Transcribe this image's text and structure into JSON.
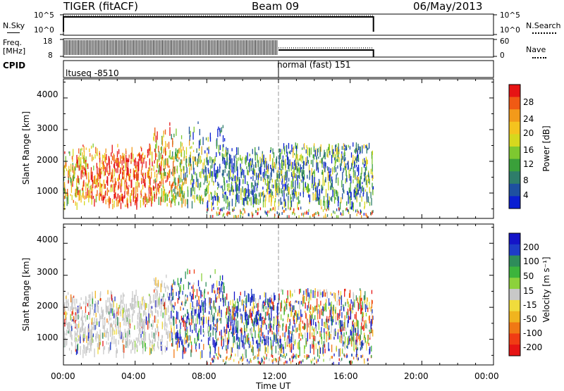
{
  "header": {
    "station": "TIGER (fitACF)",
    "beam": "Beam 09",
    "date": "06/May/2013"
  },
  "status_panels": {
    "nsky": {
      "label": "N.Sky",
      "ticks": [
        "10^5",
        "10^0"
      ],
      "right_ticks": [
        "10^5",
        "10^0"
      ],
      "right_label": "N.Search"
    },
    "freq": {
      "label_line1": "Freq.",
      "label_line2": "[MHz]",
      "ticks": [
        "18",
        "8"
      ],
      "right_ticks": [
        "60",
        "0"
      ],
      "right_label": "Nave"
    },
    "cpid": {
      "label": "CPID",
      "programs": [
        "ltuseq -8510",
        "normal (fast) 151"
      ]
    }
  },
  "chart_data": [
    {
      "type": "heatmap",
      "name": "power",
      "ylabel": "Slant Range [km]",
      "xlabel": "",
      "yticks": [
        1000,
        2000,
        3000,
        4000
      ],
      "ylim": [
        200,
        4600
      ],
      "x_ticks": [
        "00:00",
        "04:00",
        "08:00",
        "12:00",
        "16:00",
        "20:00",
        "00:00"
      ],
      "xlim_hours": [
        0,
        24
      ],
      "colorbar": {
        "label": "Power [dB]",
        "ticks": [
          "4",
          "8",
          "12",
          "16",
          "20",
          "24",
          "28"
        ],
        "colors": [
          "#0a1ed2",
          "#1e50a0",
          "#2e7d6a",
          "#3aa03a",
          "#7ec830",
          "#d6d81e",
          "#f5c31e",
          "#f39a1a",
          "#f05a14",
          "#e61414"
        ]
      }
    },
    {
      "type": "heatmap",
      "name": "velocity",
      "ylabel": "Slant Range [km]",
      "xlabel": "Time UT",
      "yticks": [
        1000,
        2000,
        3000,
        4000
      ],
      "ylim": [
        200,
        4600
      ],
      "x_ticks": [
        "00:00",
        "04:00",
        "08:00",
        "12:00",
        "16:00",
        "20:00",
        "00:00"
      ],
      "xlim_hours": [
        0,
        24
      ],
      "colorbar": {
        "label": "Velocity [m s⁻¹]",
        "ticks": [
          "200",
          "100",
          "50",
          "15",
          "-15",
          "-50",
          "-100",
          "-200"
        ],
        "colors": [
          "#1414c8",
          "#1e3cc8",
          "#2e8c5a",
          "#3cb43c",
          "#8cd23c",
          "#c8c8c8",
          "#f0dc3c",
          "#f0b41e",
          "#f07814",
          "#f03c14",
          "#e61414"
        ]
      }
    }
  ]
}
